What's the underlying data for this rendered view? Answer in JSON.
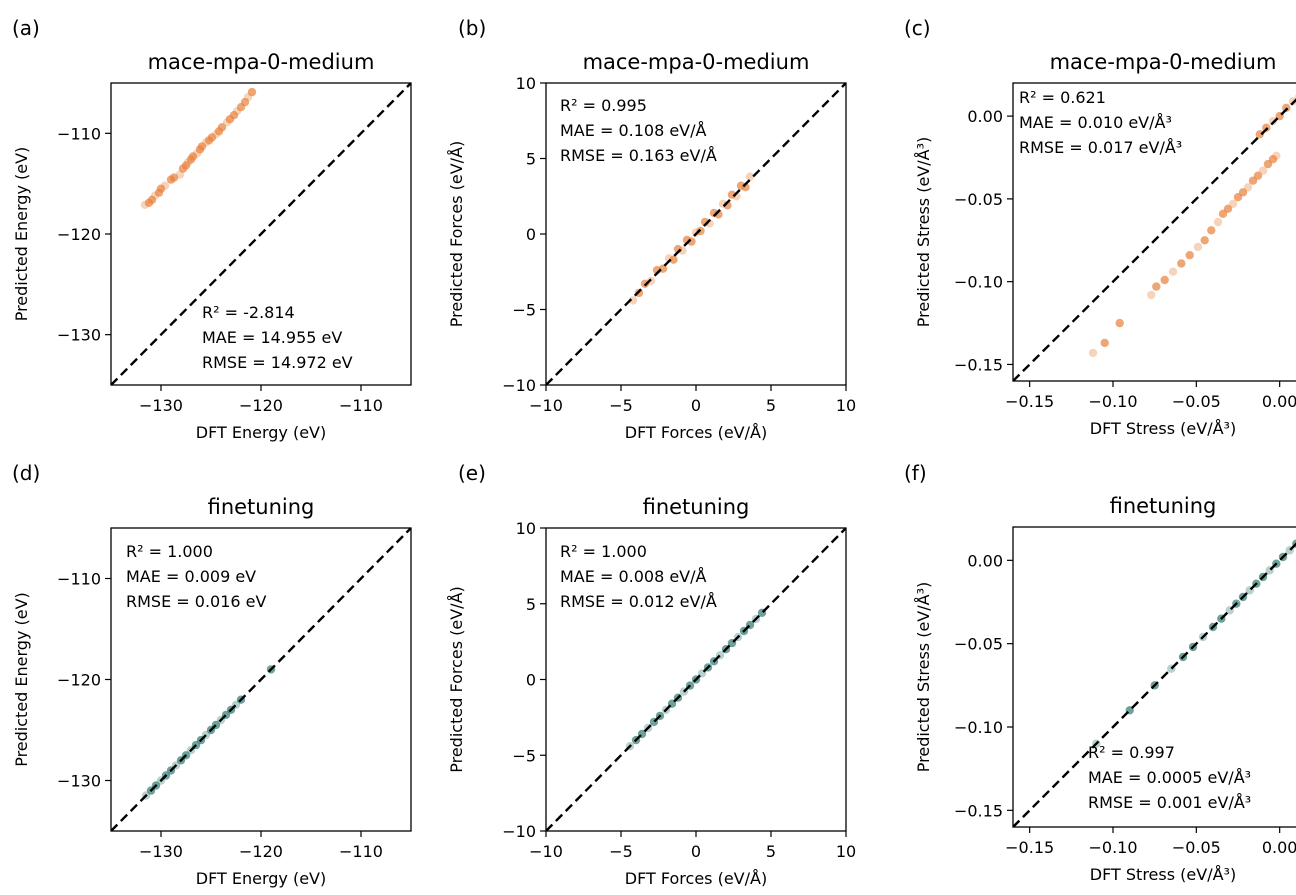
{
  "colors": {
    "before": "#e8803a",
    "after": "#2f7a72",
    "diagonal": "#000000"
  },
  "panels": [
    {
      "panel_label": "(a)",
      "title": "mace-mpa-0-medium",
      "xlabel": "DFT Energy (eV)",
      "ylabel": "Predicted Energy (eV)",
      "stats": [
        "R² = -2.814",
        "MAE = 14.955 eV",
        "RMSE = 14.972 eV"
      ],
      "xticks": [
        "−130",
        "−120",
        "−110"
      ],
      "yticks": [
        "−110",
        "−120",
        "−130"
      ]
    },
    {
      "panel_label": "(b)",
      "title": "mace-mpa-0-medium",
      "xlabel": "DFT Forces (eV/Å)",
      "ylabel": "Predicted Forces (eV/Å)",
      "stats": [
        "R² = 0.995",
        "MAE = 0.108 eV/Å",
        "RMSE = 0.163 eV/Å"
      ],
      "xticks": [
        "−10",
        "−5",
        "0",
        "5",
        "10"
      ],
      "yticks": [
        "10",
        "5",
        "0",
        "−5",
        "−10"
      ]
    },
    {
      "panel_label": "(c)",
      "title": "mace-mpa-0-medium",
      "xlabel": "DFT Stress (eV/Å³)",
      "ylabel": "Predicted Stress (eV/Å³)",
      "stats": [
        "R² = 0.621",
        "MAE = 0.010 eV/Å³",
        "RMSE = 0.017 eV/Å³"
      ],
      "xticks": [
        "−0.15",
        "−0.10",
        "−0.05",
        "0.00"
      ],
      "yticks": [
        "0.00",
        "−0.05",
        "−0.10",
        "−0.15"
      ]
    },
    {
      "panel_label": "(d)",
      "title": "finetuning",
      "xlabel": "DFT Energy (eV)",
      "ylabel": "Predicted Energy (eV)",
      "stats": [
        "R² = 1.000",
        "MAE = 0.009 eV",
        "RMSE = 0.016 eV"
      ],
      "xticks": [
        "−130",
        "−120",
        "−110"
      ],
      "yticks": [
        "−110",
        "−120",
        "−130"
      ]
    },
    {
      "panel_label": "(e)",
      "title": "finetuning",
      "xlabel": "DFT Forces (eV/Å)",
      "ylabel": "Predicted Forces (eV/Å)",
      "stats": [
        "R² = 1.000",
        "MAE = 0.008 eV/Å",
        "RMSE = 0.012 eV/Å"
      ],
      "xticks": [
        "−10",
        "−5",
        "0",
        "5",
        "10"
      ],
      "yticks": [
        "10",
        "5",
        "0",
        "−5",
        "−10"
      ]
    },
    {
      "panel_label": "(f)",
      "title": "finetuning",
      "xlabel": "DFT Stress (eV/Å³)",
      "ylabel": "Predicted Stress (eV/Å³)",
      "stats": [
        "R² = 0.997",
        "MAE = 0.0005 eV/Å³",
        "RMSE = 0.001 eV/Å³"
      ],
      "xticks": [
        "−0.15",
        "−0.10",
        "−0.05",
        "0.00"
      ],
      "yticks": [
        "0.00",
        "−0.05",
        "−0.10",
        "−0.15"
      ]
    }
  ],
  "chart_data": [
    {
      "type": "scatter",
      "panel": "(a)",
      "title": "mace-mpa-0-medium",
      "xlabel": "DFT Energy (eV)",
      "ylabel": "Predicted Energy (eV)",
      "xlim": [
        -135,
        -105
      ],
      "ylim": [
        -135,
        -105
      ],
      "grid": false,
      "reference_line": "y = x",
      "color": "before",
      "points": [
        [
          -131.6,
          -117.1
        ],
        [
          -131.2,
          -116.9
        ],
        [
          -130.9,
          -116.6
        ],
        [
          -130.6,
          -116.2
        ],
        [
          -130.2,
          -115.9
        ],
        [
          -130.0,
          -115.5
        ],
        [
          -129.6,
          -115.2
        ],
        [
          -129.0,
          -114.6
        ],
        [
          -128.7,
          -114.4
        ],
        [
          -128.1,
          -114.1
        ],
        [
          -127.8,
          -113.5
        ],
        [
          -127.5,
          -113.2
        ],
        [
          -127.3,
          -112.9
        ],
        [
          -127.0,
          -112.6
        ],
        [
          -126.8,
          -112.3
        ],
        [
          -126.4,
          -112.0
        ],
        [
          -126.1,
          -111.6
        ],
        [
          -125.9,
          -111.3
        ],
        [
          -125.5,
          -110.9
        ],
        [
          -125.2,
          -110.7
        ],
        [
          -124.9,
          -110.4
        ],
        [
          -124.5,
          -110.1
        ],
        [
          -124.2,
          -109.8
        ],
        [
          -123.9,
          -109.4
        ],
        [
          -123.4,
          -108.9
        ],
        [
          -123.1,
          -108.6
        ],
        [
          -122.7,
          -108.2
        ],
        [
          -122.4,
          -107.8
        ],
        [
          -122.0,
          -107.4
        ],
        [
          -121.6,
          -106.9
        ],
        [
          -121.3,
          -106.4
        ],
        [
          -120.9,
          -105.9
        ]
      ]
    },
    {
      "type": "scatter",
      "panel": "(b)",
      "title": "mace-mpa-0-medium",
      "xlabel": "DFT Forces (eV/Å)",
      "ylabel": "Predicted Forces (eV/Å)",
      "xlim": [
        -10,
        10
      ],
      "ylim": [
        -10,
        10
      ],
      "grid": false,
      "reference_line": "y = x",
      "color": "before",
      "points": [
        [
          -4.2,
          -4.4
        ],
        [
          -3.8,
          -3.9
        ],
        [
          -3.4,
          -3.3
        ],
        [
          -3.0,
          -3.1
        ],
        [
          -2.6,
          -2.4
        ],
        [
          -2.2,
          -2.3
        ],
        [
          -1.8,
          -1.6
        ],
        [
          -1.5,
          -1.7
        ],
        [
          -1.2,
          -1.0
        ],
        [
          -0.9,
          -1.1
        ],
        [
          -0.6,
          -0.4
        ],
        [
          -0.3,
          -0.5
        ],
        [
          0.0,
          0.1
        ],
        [
          0.3,
          0.2
        ],
        [
          0.6,
          0.8
        ],
        [
          0.9,
          0.7
        ],
        [
          1.2,
          1.4
        ],
        [
          1.5,
          1.3
        ],
        [
          1.8,
          2.0
        ],
        [
          2.1,
          1.9
        ],
        [
          2.4,
          2.6
        ],
        [
          2.7,
          2.5
        ],
        [
          3.0,
          3.2
        ],
        [
          3.3,
          3.1
        ],
        [
          3.6,
          3.8
        ]
      ]
    },
    {
      "type": "scatter",
      "panel": "(c)",
      "title": "mace-mpa-0-medium",
      "xlabel": "DFT Stress (eV/Å³)",
      "ylabel": "Predicted Stress (eV/Å³)",
      "xlim": [
        -0.16,
        0.02
      ],
      "ylim": [
        -0.16,
        0.02
      ],
      "grid": false,
      "reference_line": "y = x",
      "color": "before",
      "points": [
        [
          -0.112,
          -0.143
        ],
        [
          -0.105,
          -0.137
        ],
        [
          -0.096,
          -0.125
        ],
        [
          -0.077,
          -0.108
        ],
        [
          -0.074,
          -0.103
        ],
        [
          -0.069,
          -0.099
        ],
        [
          -0.064,
          -0.094
        ],
        [
          -0.059,
          -0.089
        ],
        [
          -0.054,
          -0.084
        ],
        [
          -0.049,
          -0.079
        ],
        [
          -0.045,
          -0.075
        ],
        [
          -0.041,
          -0.069
        ],
        [
          -0.037,
          -0.064
        ],
        [
          -0.034,
          -0.059
        ],
        [
          -0.031,
          -0.056
        ],
        [
          -0.028,
          -0.053
        ],
        [
          -0.025,
          -0.049
        ],
        [
          -0.022,
          -0.046
        ],
        [
          -0.019,
          -0.043
        ],
        [
          -0.016,
          -0.039
        ],
        [
          -0.013,
          -0.036
        ],
        [
          -0.01,
          -0.033
        ],
        [
          -0.007,
          -0.029
        ],
        [
          -0.004,
          -0.026
        ],
        [
          -0.002,
          -0.024
        ],
        [
          -0.012,
          -0.011
        ],
        [
          -0.008,
          -0.007
        ],
        [
          -0.004,
          -0.003
        ],
        [
          0.0,
          0.0
        ],
        [
          0.004,
          0.005
        ],
        [
          0.008,
          0.009
        ],
        [
          0.012,
          0.012
        ],
        [
          0.015,
          0.015
        ]
      ]
    },
    {
      "type": "scatter",
      "panel": "(d)",
      "title": "finetuning",
      "xlabel": "DFT Energy (eV)",
      "ylabel": "Predicted Energy (eV)",
      "xlim": [
        -135,
        -105
      ],
      "ylim": [
        -135,
        -105
      ],
      "grid": false,
      "reference_line": "y = x",
      "color": "after",
      "points": [
        [
          -131.5,
          -131.5
        ],
        [
          -131.0,
          -131.0
        ],
        [
          -130.5,
          -130.5
        ],
        [
          -130.0,
          -130.0
        ],
        [
          -129.5,
          -129.5
        ],
        [
          -129.0,
          -129.0
        ],
        [
          -128.5,
          -128.5
        ],
        [
          -128.0,
          -128.0
        ],
        [
          -127.5,
          -127.5
        ],
        [
          -127.0,
          -127.0
        ],
        [
          -126.5,
          -126.5
        ],
        [
          -126.0,
          -126.0
        ],
        [
          -125.5,
          -125.5
        ],
        [
          -125.0,
          -125.0
        ],
        [
          -124.5,
          -124.5
        ],
        [
          -124.0,
          -124.0
        ],
        [
          -123.5,
          -123.5
        ],
        [
          -123.0,
          -123.0
        ],
        [
          -122.5,
          -122.5
        ],
        [
          -122.0,
          -122.0
        ],
        [
          -119.0,
          -119.0
        ]
      ]
    },
    {
      "type": "scatter",
      "panel": "(e)",
      "title": "finetuning",
      "xlabel": "DFT Forces (eV/Å)",
      "ylabel": "Predicted Forces (eV/Å)",
      "xlim": [
        -10,
        10
      ],
      "ylim": [
        -10,
        10
      ],
      "grid": false,
      "reference_line": "y = x",
      "color": "after",
      "points": [
        [
          -4.4,
          -4.4
        ],
        [
          -4.0,
          -4.0
        ],
        [
          -3.6,
          -3.6
        ],
        [
          -3.2,
          -3.2
        ],
        [
          -2.8,
          -2.8
        ],
        [
          -2.4,
          -2.4
        ],
        [
          -2.0,
          -2.0
        ],
        [
          -1.6,
          -1.6
        ],
        [
          -1.2,
          -1.2
        ],
        [
          -0.8,
          -0.8
        ],
        [
          -0.4,
          -0.4
        ],
        [
          0.0,
          0.0
        ],
        [
          0.4,
          0.4
        ],
        [
          0.8,
          0.8
        ],
        [
          1.2,
          1.2
        ],
        [
          1.6,
          1.6
        ],
        [
          2.0,
          2.0
        ],
        [
          2.4,
          2.4
        ],
        [
          2.8,
          2.8
        ],
        [
          3.2,
          3.2
        ],
        [
          3.6,
          3.6
        ],
        [
          4.0,
          4.0
        ],
        [
          4.4,
          4.4
        ]
      ]
    },
    {
      "type": "scatter",
      "panel": "(f)",
      "title": "finetuning",
      "xlabel": "DFT Stress (eV/Å³)",
      "ylabel": "Predicted Stress (eV/Å³)",
      "xlim": [
        -0.16,
        0.02
      ],
      "ylim": [
        -0.16,
        0.02
      ],
      "grid": false,
      "reference_line": "y = x",
      "color": "after",
      "points": [
        [
          -0.11,
          -0.11
        ],
        [
          -0.09,
          -0.09
        ],
        [
          -0.075,
          -0.075
        ],
        [
          -0.065,
          -0.065
        ],
        [
          -0.058,
          -0.058
        ],
        [
          -0.052,
          -0.052
        ],
        [
          -0.046,
          -0.046
        ],
        [
          -0.04,
          -0.04
        ],
        [
          -0.035,
          -0.035
        ],
        [
          -0.03,
          -0.03
        ],
        [
          -0.026,
          -0.026
        ],
        [
          -0.022,
          -0.022
        ],
        [
          -0.018,
          -0.018
        ],
        [
          -0.014,
          -0.014
        ],
        [
          -0.01,
          -0.01
        ],
        [
          -0.006,
          -0.006
        ],
        [
          -0.002,
          -0.002
        ],
        [
          0.002,
          0.002
        ],
        [
          0.006,
          0.006
        ],
        [
          0.01,
          0.01
        ],
        [
          0.014,
          0.014
        ],
        [
          0.017,
          0.017
        ]
      ]
    }
  ]
}
